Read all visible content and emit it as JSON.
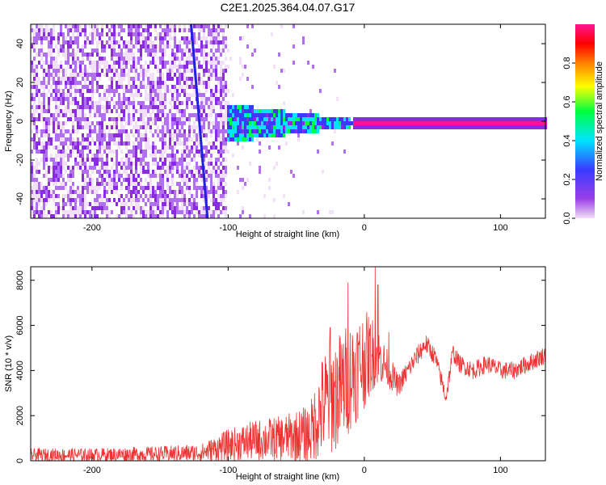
{
  "title": "C2E1.2025.364.04.07.G17",
  "chart_data": [
    {
      "type": "heatmap",
      "xlabel": "Height of straight line (km)",
      "ylabel": "Frequency (Hz)",
      "xlim": [
        -245,
        133
      ],
      "ylim": [
        -50,
        50
      ],
      "xticks": [
        -200,
        -100,
        0,
        100
      ],
      "yticks": [
        -40,
        -20,
        0,
        20,
        40
      ],
      "colorbar": {
        "label": "Normalized spectral amplitude",
        "range": [
          0,
          1
        ],
        "ticks": [
          "0.0",
          "0.2",
          "0.4",
          "0.6",
          "0.8"
        ],
        "colormap": [
          "#f2dff8",
          "#8a2be2",
          "#3a3aff",
          "#00e5ff",
          "#00ff40",
          "#ffff00",
          "#ff8000",
          "#ff0000",
          "#ff1493"
        ]
      },
      "description_regions": {
        "noise_band": {
          "x_from": -245,
          "x_to": -100,
          "amplitude": 0.15
        },
        "signal_line": {
          "frequency": 0,
          "x_from": -10,
          "x_to": 133,
          "amplitude": 0.95
        },
        "transition": {
          "x_from": -100,
          "x_to": -10,
          "amplitude": 0.45
        },
        "streak": {
          "x_from": -125,
          "x_to": -115,
          "note": "diagonal blue streak"
        }
      }
    },
    {
      "type": "line",
      "xlabel": "Height of straight line (km)",
      "ylabel": "SNR (10 * v/v)",
      "xlim": [
        -245,
        133
      ],
      "ylim": [
        0,
        8600
      ],
      "xticks": [
        -200,
        -100,
        0,
        100
      ],
      "yticks": [
        0,
        2000,
        4000,
        6000,
        8000
      ],
      "series": [
        {
          "color": "#ee3333",
          "envelope_x": [
            -245,
            -200,
            -150,
            -120,
            -100,
            -80,
            -60,
            -40,
            -30,
            -20,
            -10,
            0,
            8,
            15,
            25,
            35,
            45,
            52,
            60,
            65,
            70,
            80,
            90,
            100,
            110,
            120,
            133
          ],
          "envelope_y": [
            250,
            260,
            300,
            350,
            700,
            900,
            1000,
            1200,
            2500,
            3000,
            3800,
            4500,
            4800,
            4300,
            3300,
            4300,
            5200,
            4600,
            2800,
            4800,
            4300,
            4000,
            4300,
            4000,
            4000,
            4300,
            4700
          ],
          "noise": [
            300,
            300,
            350,
            400,
            700,
            900,
            1000,
            1300,
            2400,
            2600,
            2500,
            2200,
            1500,
            900,
            500,
            450,
            450,
            400,
            400,
            400,
            400,
            400,
            400,
            400,
            400,
            400,
            400
          ],
          "spikes": [
            [
              -12,
              7900
            ],
            [
              8,
              8600
            ],
            [
              10,
              7800
            ],
            [
              -25,
              5900
            ],
            [
              18,
              5700
            ]
          ]
        }
      ]
    }
  ]
}
